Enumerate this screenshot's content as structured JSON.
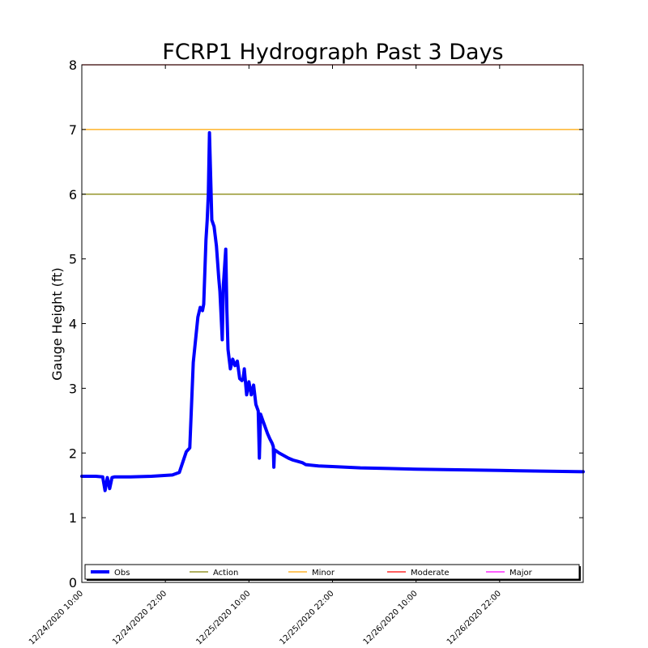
{
  "chart_data": {
    "type": "line",
    "title": "FCRP1 Hydrograph Past 3 Days",
    "xlabel": "",
    "ylabel": "Gauge Height (ft)",
    "ylim": [
      0,
      8
    ],
    "yticks": [
      0,
      1,
      2,
      3,
      4,
      5,
      6,
      7,
      8
    ],
    "xlim": [
      "12/24/2020 10:00",
      "12/27/2020 10:00"
    ],
    "xticks": [
      "12/24/2020 10:00",
      "12/24/2020 22:00",
      "12/25/2020 10:00",
      "12/25/2020 22:00",
      "12/26/2020 10:00",
      "12/26/2020 22:00"
    ],
    "grid": false,
    "legend_placement": "bottom",
    "series": [
      {
        "name": "Obs",
        "color": "#0000ff",
        "x": [
          "12/24/2020 10:00",
          "12/24/2020 12:00",
          "12/24/2020 13:00",
          "12/24/2020 13:20",
          "12/24/2020 13:40",
          "12/24/2020 14:00",
          "12/24/2020 14:20",
          "12/24/2020 14:40",
          "12/24/2020 15:00",
          "12/24/2020 15:40",
          "12/24/2020 16:20",
          "12/24/2020 17:00",
          "12/24/2020 20:00",
          "12/24/2020 23:00",
          "12/25/2020 00:00",
          "12/25/2020 01:00",
          "12/25/2020 01:30",
          "12/25/2020 02:00",
          "12/25/2020 02:40",
          "12/25/2020 03:00",
          "12/25/2020 03:20",
          "12/25/2020 03:30",
          "12/25/2020 03:40",
          "12/25/2020 03:50",
          "12/25/2020 04:00",
          "12/25/2020 04:10",
          "12/25/2020 04:20",
          "12/25/2020 04:40",
          "12/25/2020 05:00",
          "12/25/2020 05:20",
          "12/25/2020 05:40",
          "12/25/2020 05:50",
          "12/25/2020 06:10",
          "12/25/2020 06:20",
          "12/25/2020 06:40",
          "12/25/2020 06:50",
          "12/25/2020 07:00",
          "12/25/2020 07:20",
          "12/25/2020 07:40",
          "12/25/2020 08:00",
          "12/25/2020 08:20",
          "12/25/2020 08:40",
          "12/25/2020 09:00",
          "12/25/2020 09:10",
          "12/25/2020 09:20",
          "12/25/2020 09:40",
          "12/25/2020 10:00",
          "12/25/2020 10:20",
          "12/25/2020 10:40",
          "12/25/2020 11:00",
          "12/25/2020 11:20",
          "12/25/2020 11:30",
          "12/25/2020 11:40",
          "12/25/2020 11:50",
          "12/25/2020 12:00",
          "12/25/2020 12:10",
          "12/25/2020 12:20",
          "12/25/2020 12:40",
          "12/25/2020 13:00",
          "12/25/2020 13:20",
          "12/25/2020 13:30",
          "12/25/2020 13:35",
          "12/25/2020 13:40",
          "12/25/2020 14:20",
          "12/25/2020 15:00",
          "12/25/2020 15:40",
          "12/25/2020 16:20",
          "12/25/2020 17:00",
          "12/25/2020 17:40",
          "12/25/2020 17:50",
          "12/25/2020 18:00",
          "12/25/2020 18:10",
          "12/25/2020 20:00",
          "12/25/2020 22:00",
          "12/26/2020 02:00",
          "12/26/2020 06:00",
          "12/26/2020 10:00",
          "12/26/2020 16:00",
          "12/26/2020 22:00",
          "12/27/2020 04:00",
          "12/27/2020 10:00"
        ],
        "y": [
          1.64,
          1.64,
          1.63,
          1.42,
          1.62,
          1.45,
          1.62,
          1.63,
          1.63,
          1.63,
          1.63,
          1.63,
          1.64,
          1.66,
          1.7,
          2.02,
          2.08,
          3.4,
          4.1,
          4.25,
          4.2,
          4.3,
          4.8,
          5.3,
          5.6,
          6.0,
          6.95,
          5.6,
          5.5,
          5.2,
          4.7,
          4.5,
          3.75,
          4.6,
          5.15,
          4.2,
          3.6,
          3.3,
          3.45,
          3.35,
          3.42,
          3.15,
          3.12,
          3.15,
          3.3,
          2.9,
          3.1,
          2.9,
          3.05,
          2.75,
          2.65,
          1.92,
          2.6,
          2.55,
          2.5,
          2.45,
          2.4,
          2.3,
          2.22,
          2.15,
          2.1,
          1.78,
          2.05,
          2.0,
          1.96,
          1.92,
          1.89,
          1.87,
          1.85,
          1.84,
          1.83,
          1.82,
          1.8,
          1.79,
          1.77,
          1.76,
          1.75,
          1.74,
          1.73,
          1.72,
          1.71
        ]
      }
    ],
    "thresholds": [
      {
        "name": "Action",
        "value": 6,
        "color": "#808000"
      },
      {
        "name": "Minor",
        "value": 7,
        "color": "#ffa500"
      },
      {
        "name": "Moderate",
        "value": 8,
        "color": "#ff0000"
      },
      {
        "name": "Major",
        "value": null,
        "color": "#ff00ff"
      }
    ]
  }
}
